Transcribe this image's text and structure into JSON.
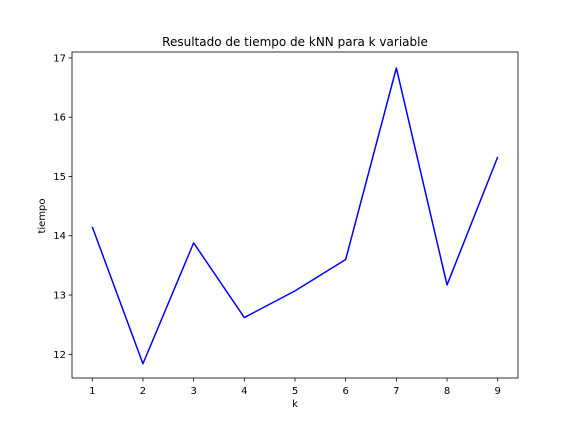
{
  "chart_data": {
    "type": "line",
    "title": "Resultado de tiempo de kNN para k variable",
    "xlabel": "k",
    "ylabel": "tiempo",
    "x": [
      1,
      2,
      3,
      4,
      5,
      6,
      7,
      8,
      9
    ],
    "series": [
      {
        "values": [
          14.15,
          11.84,
          13.88,
          12.62,
          13.07,
          13.6,
          16.83,
          13.17,
          15.33
        ],
        "color": "#0000ff"
      }
    ],
    "xlim": [
      0.6,
      9.4
    ],
    "ylim": [
      11.6,
      17.1
    ],
    "xticks": [
      1,
      2,
      3,
      4,
      5,
      6,
      7,
      8,
      9
    ],
    "yticks": [
      12,
      13,
      14,
      15,
      16,
      17
    ],
    "grid": false
  }
}
